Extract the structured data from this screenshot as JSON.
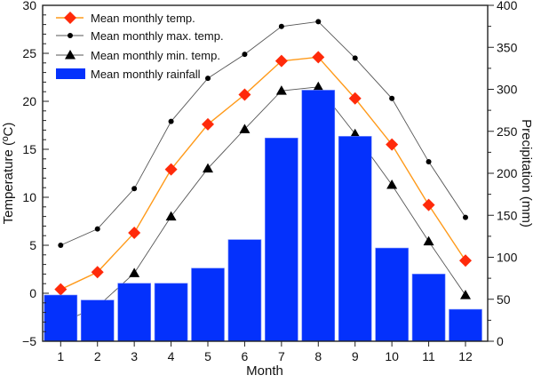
{
  "chart_data": {
    "type": "bar+line",
    "xlabel": "Month",
    "ylabel_left": "Temperature (ºC)",
    "ylabel_right": "Precipitation (mm)",
    "ylim_left": [
      -5,
      30
    ],
    "ylim_right": [
      0,
      400
    ],
    "left_ticks": [
      -5,
      0,
      5,
      10,
      15,
      20,
      25,
      30
    ],
    "right_ticks": [
      0,
      50,
      100,
      150,
      200,
      250,
      300,
      350,
      400
    ],
    "categories": [
      "1",
      "2",
      "3",
      "4",
      "5",
      "6",
      "7",
      "8",
      "9",
      "10",
      "11",
      "12"
    ],
    "grid": false,
    "legend_position": "top-left",
    "series": [
      {
        "name": "Mean monthly temp.",
        "type": "line",
        "axis": "left",
        "marker": "diamond",
        "color": "#ff2a0a",
        "line_color": "#ff9a1a",
        "values": [
          0.4,
          2.2,
          6.3,
          12.9,
          17.6,
          20.7,
          24.2,
          24.6,
          20.3,
          15.5,
          9.2,
          3.4
        ]
      },
      {
        "name": "Mean monthly max. temp.",
        "type": "line",
        "axis": "left",
        "marker": "circle",
        "color": "#000000",
        "line_color": "#555555",
        "values": [
          5.0,
          6.7,
          10.9,
          17.9,
          22.4,
          24.9,
          27.8,
          28.3,
          24.5,
          20.3,
          13.7,
          7.9
        ]
      },
      {
        "name": "Mean monthly min. temp.",
        "type": "line",
        "axis": "left",
        "marker": "triangle",
        "color": "#000000",
        "line_color": "#555555",
        "values": [
          -3.1,
          -1.4,
          2.1,
          8.0,
          13.0,
          17.1,
          21.1,
          21.5,
          16.6,
          11.3,
          5.4,
          -0.2
        ]
      },
      {
        "name": "Mean monthly rainfall",
        "type": "bar",
        "axis": "right",
        "color": "#0431fc",
        "values": [
          55,
          49,
          69,
          69,
          87,
          121,
          242,
          299,
          244,
          111,
          80,
          38
        ]
      }
    ]
  }
}
